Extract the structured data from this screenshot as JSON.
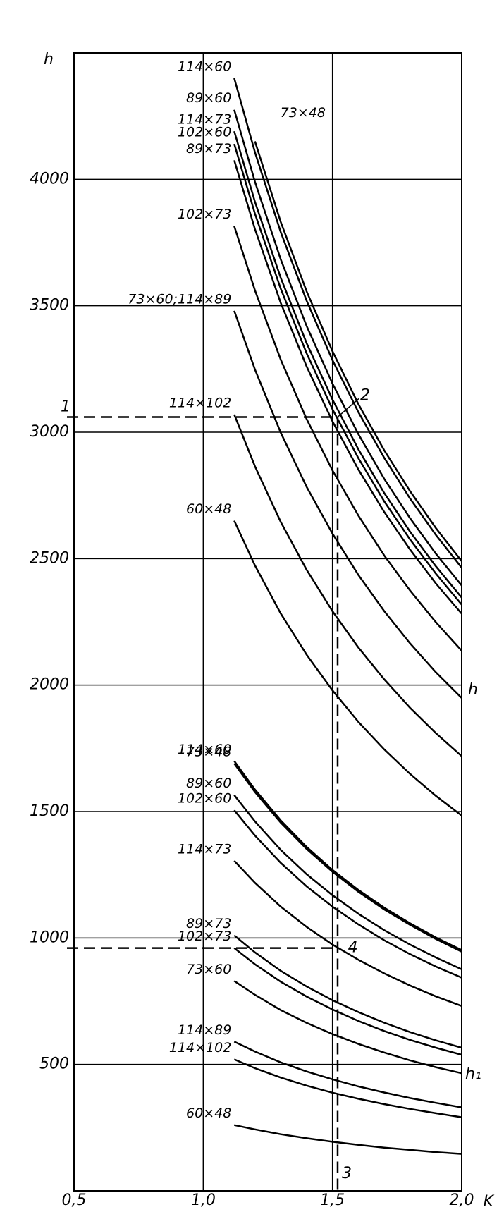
{
  "chart_data": {
    "type": "line",
    "y_label": "h",
    "x_label": "K",
    "right_labels": [
      "h",
      "h₁"
    ],
    "annotations": [
      "1",
      "2",
      "3",
      "4"
    ],
    "guides": [
      {
        "x": 1.52,
        "y": 3060
      },
      {
        "x": 1.5,
        "y": 960
      }
    ],
    "x": [
      1.12,
      1.2,
      1.3,
      1.4,
      1.5,
      1.6,
      1.7,
      1.8,
      1.9,
      2.0
    ],
    "xlim": [
      0.5,
      2.0
    ],
    "xticks": [
      {
        "value": 0.5,
        "label": "0,5"
      },
      {
        "value": 1.0,
        "label": "1,0"
      },
      {
        "value": 1.5,
        "label": "1,5"
      },
      {
        "value": 2.0,
        "label": "2,0"
      }
    ],
    "ylim": [
      0,
      4500
    ],
    "yticks": [
      500,
      1000,
      1500,
      2000,
      2500,
      3000,
      3500,
      4000
    ],
    "grid": true,
    "color": "#000000",
    "series": [
      {
        "name": "114×60",
        "values": [
          4400,
          4107,
          3791,
          3520,
          3285,
          3080,
          2899,
          2738,
          2594,
          2464
        ]
      },
      {
        "name": "89×60",
        "values": [
          4275,
          3990,
          3683,
          3420,
          3192,
          2993,
          2816,
          2660,
          2520,
          2394
        ]
      },
      {
        "name": "114×73",
        "values": [
          4190,
          3911,
          3610,
          3352,
          3129,
          2933,
          2760,
          2607,
          2470,
          2346
        ]
      },
      {
        "name": "102×60",
        "values": [
          4140,
          3864,
          3567,
          3312,
          3091,
          2898,
          2727,
          2576,
          2441,
          2318
        ]
      },
      {
        "name": "89×73",
        "values": [
          4075,
          3803,
          3511,
          3260,
          3043,
          2853,
          2685,
          2536,
          2402,
          2282
        ]
      },
      {
        "name": "73×48",
        "values": [
          null,
          4150,
          3831,
          3557,
          3320,
          3112,
          2929,
          2767,
          2621,
          2490
        ]
      },
      {
        "name": "102×73",
        "values": [
          3815,
          3561,
          3287,
          3052,
          2849,
          2671,
          2513,
          2374,
          2249,
          2136
        ]
      },
      {
        "name": "73×60;114×89",
        "values": [
          3480,
          3248,
          2998,
          2784,
          2599,
          2436,
          2293,
          2165,
          2051,
          1949
        ]
      },
      {
        "name": "114×102",
        "values": [
          3070,
          2865,
          2645,
          2456,
          2292,
          2149,
          2023,
          1910,
          1810,
          1719
        ]
      },
      {
        "name": "60×48",
        "values": [
          2650,
          2473,
          2283,
          2120,
          1979,
          1855,
          1746,
          1649,
          1562,
          1484
        ]
      },
      {
        "name": "114×60",
        "values": [
          1700,
          1587,
          1465,
          1360,
          1269,
          1190,
          1120,
          1058,
          1002,
          952
        ]
      },
      {
        "name": "73×48",
        "values": [
          1690,
          1577,
          1456,
          1352,
          1262,
          1183,
          1113,
          1052,
          996,
          946
        ]
      },
      {
        "name": "89×60",
        "values": [
          1565,
          1461,
          1348,
          1252,
          1169,
          1096,
          1031,
          974,
          923,
          876
        ]
      },
      {
        "name": "102×60",
        "values": [
          1505,
          1405,
          1297,
          1204,
          1124,
          1054,
          991,
          936,
          887,
          843
        ]
      },
      {
        "name": "114×73",
        "values": [
          1305,
          1218,
          1124,
          1044,
          974,
          914,
          860,
          812,
          769,
          731
        ]
      },
      {
        "name": "89×73",
        "values": [
          1010,
          943,
          870,
          808,
          754,
          707,
          665,
          628,
          595,
          566
        ]
      },
      {
        "name": "102×73",
        "values": [
          960,
          896,
          827,
          768,
          717,
          672,
          632,
          597,
          566,
          538
        ]
      },
      {
        "name": "73×60",
        "values": [
          830,
          775,
          715,
          664,
          620,
          581,
          547,
          516,
          489,
          465
        ]
      },
      {
        "name": "114×89",
        "values": [
          590,
          551,
          508,
          472,
          441,
          413,
          389,
          367,
          348,
          330
        ]
      },
      {
        "name": "114×102",
        "values": [
          520,
          485,
          448,
          416,
          388,
          364,
          343,
          324,
          307,
          291
        ]
      },
      {
        "name": "60×48",
        "values": [
          260,
          243,
          224,
          208,
          194,
          182,
          171,
          162,
          153,
          146
        ]
      }
    ]
  }
}
